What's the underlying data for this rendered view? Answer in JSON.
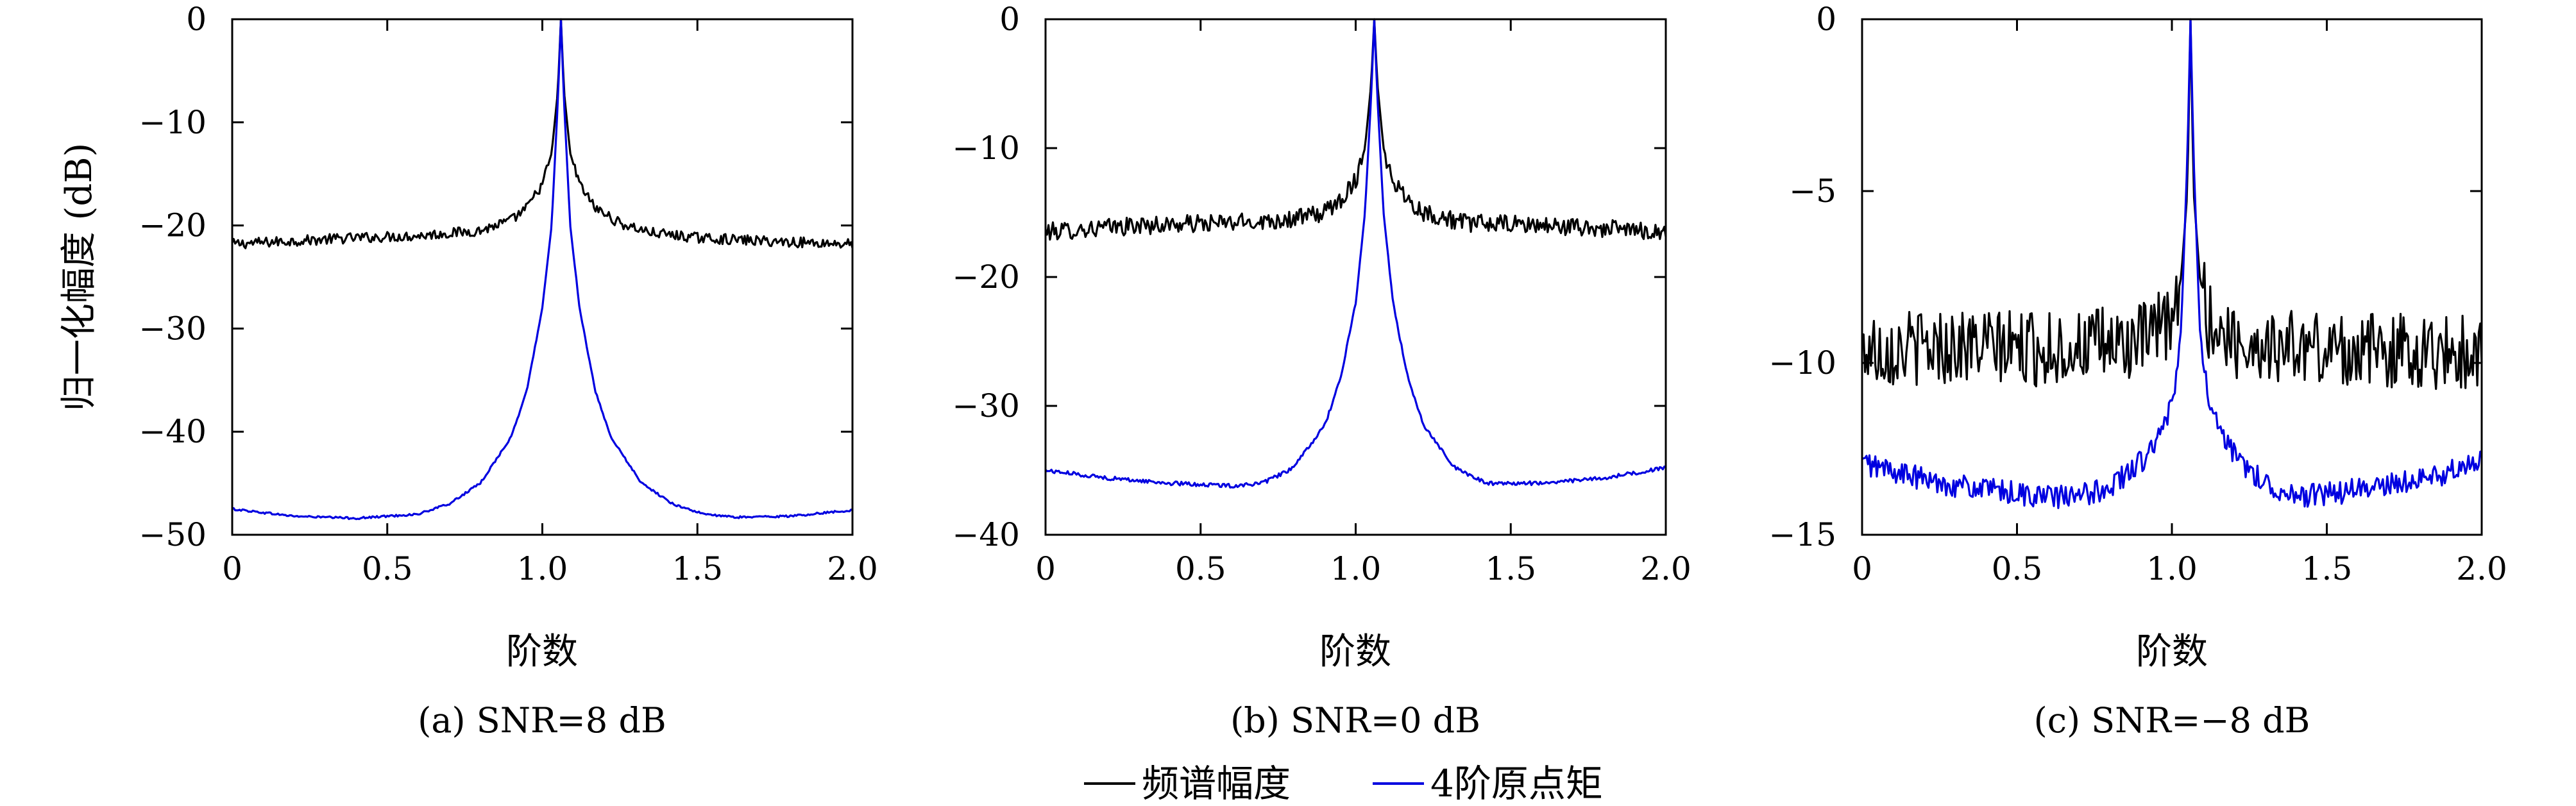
{
  "figure": {
    "legend": [
      {
        "label": "频谱幅度",
        "color": "#000000"
      },
      {
        "label": "4阶原点矩",
        "color": "#0000e0"
      }
    ]
  },
  "chart_data": [
    {
      "type": "line",
      "caption": "(a) SNR=8 dB",
      "xlabel": "阶数",
      "ylabel": "归一化幅度 (dB)",
      "xlim": [
        0,
        2.0
      ],
      "ylim": [
        -50,
        0
      ],
      "xticks": [
        0,
        0.5,
        1.0,
        1.5,
        2.0
      ],
      "xtick_labels": [
        "0",
        "0.5",
        "1.0",
        "1.5",
        "2.0"
      ],
      "yticks": [
        0,
        -10,
        -20,
        -30,
        -40,
        -50
      ],
      "ytick_labels": [
        "0",
        "−10",
        "−20",
        "−30",
        "−40",
        "−50"
      ],
      "grid": false,
      "series": [
        {
          "name": "频谱幅度",
          "color": "#000000",
          "noise": 0.5,
          "x": [
            0,
            0.2,
            0.4,
            0.6,
            0.8,
            0.9,
            0.95,
            1.0,
            1.03,
            1.05,
            1.06,
            1.07,
            1.09,
            1.12,
            1.17,
            1.25,
            1.35,
            1.5,
            1.7,
            1.9,
            2.0
          ],
          "y": [
            -21.8,
            -21.5,
            -21.2,
            -21.0,
            -20.5,
            -19.5,
            -18.3,
            -16.0,
            -13.0,
            -7.0,
            0,
            -7.0,
            -13.0,
            -16.0,
            -18.3,
            -19.8,
            -20.7,
            -21.2,
            -21.5,
            -21.7,
            -21.8
          ]
        },
        {
          "name": "4阶原点矩",
          "color": "#0000e0",
          "noise": 0.1,
          "x": [
            0,
            0.2,
            0.4,
            0.6,
            0.7,
            0.8,
            0.9,
            0.95,
            1.0,
            1.03,
            1.05,
            1.06,
            1.07,
            1.09,
            1.12,
            1.17,
            1.22,
            1.32,
            1.42,
            1.52,
            1.62,
            1.8,
            2.0
          ],
          "y": [
            -47.5,
            -48.2,
            -48.4,
            -48.0,
            -47.0,
            -45.0,
            -40.5,
            -36.0,
            -28.0,
            -20.0,
            -8.0,
            0,
            -8.0,
            -20.0,
            -28.0,
            -36.0,
            -40.5,
            -45.0,
            -47.0,
            -48.0,
            -48.3,
            -48.2,
            -47.6
          ]
        }
      ]
    },
    {
      "type": "line",
      "caption": "(b) SNR=0 dB",
      "xlabel": "阶数",
      "ylabel": "",
      "xlim": [
        0,
        2.0
      ],
      "ylim": [
        -40,
        0
      ],
      "xticks": [
        0,
        0.5,
        1.0,
        1.5,
        2.0
      ],
      "xtick_labels": [
        "0",
        "0.5",
        "1.0",
        "1.5",
        "2.0"
      ],
      "yticks": [
        0,
        -10,
        -20,
        -30,
        -40
      ],
      "ytick_labels": [
        "0",
        "−10",
        "−20",
        "−30",
        "−40"
      ],
      "grid": false,
      "series": [
        {
          "name": "频谱幅度",
          "color": "#000000",
          "noise": 0.7,
          "x": [
            0,
            0.3,
            0.6,
            0.8,
            0.9,
            0.95,
            1.0,
            1.03,
            1.05,
            1.06,
            1.07,
            1.09,
            1.12,
            1.17,
            1.22,
            1.35,
            1.6,
            2.0
          ],
          "y": [
            -16.5,
            -16.0,
            -15.8,
            -15.5,
            -15.0,
            -14.0,
            -12.5,
            -10.0,
            -5.0,
            0,
            -5.0,
            -10.0,
            -12.5,
            -14.0,
            -15.0,
            -15.8,
            -16.0,
            -16.5
          ]
        },
        {
          "name": "4阶原点矩",
          "color": "#0000e0",
          "noise": 0.15,
          "x": [
            0,
            0.2,
            0.4,
            0.6,
            0.7,
            0.8,
            0.9,
            0.95,
            1.0,
            1.03,
            1.05,
            1.06,
            1.07,
            1.09,
            1.12,
            1.17,
            1.22,
            1.32,
            1.42,
            1.6,
            1.8,
            2.0
          ],
          "y": [
            -35.0,
            -35.6,
            -36.0,
            -36.2,
            -36.0,
            -34.8,
            -31.5,
            -28.0,
            -22.0,
            -15.0,
            -6.0,
            0,
            -6.0,
            -15.0,
            -22.0,
            -28.0,
            -31.5,
            -34.8,
            -36.0,
            -36.0,
            -35.6,
            -34.8
          ]
        }
      ]
    },
    {
      "type": "line",
      "caption": "(c) SNR=−8 dB",
      "xlabel": "阶数",
      "ylabel": "",
      "xlim": [
        0,
        2.0
      ],
      "ylim": [
        -15,
        0
      ],
      "xticks": [
        0,
        0.5,
        1.0,
        1.5,
        2.0
      ],
      "xtick_labels": [
        "0",
        "0.5",
        "1.0",
        "1.5",
        "2.0"
      ],
      "yticks": [
        0,
        -5,
        -10,
        -15
      ],
      "ytick_labels": [
        "0",
        "−5",
        "−10",
        "−15"
      ],
      "grid": false,
      "series": [
        {
          "name": "频谱幅度",
          "color": "#000000",
          "noise": 1.1,
          "x": [
            0,
            0.3,
            0.6,
            0.9,
            1.0,
            1.03,
            1.05,
            1.06,
            1.07,
            1.09,
            1.12,
            1.2,
            1.5,
            2.0
          ],
          "y": [
            -9.6,
            -9.5,
            -9.6,
            -9.4,
            -8.8,
            -7.5,
            -5.0,
            0,
            -5.0,
            -7.5,
            -8.8,
            -9.4,
            -9.6,
            -9.7
          ]
        },
        {
          "name": "4阶原点矩",
          "color": "#0000e0",
          "noise": 0.35,
          "x": [
            0,
            0.2,
            0.4,
            0.6,
            0.7,
            0.8,
            0.9,
            0.95,
            1.0,
            1.03,
            1.05,
            1.06,
            1.07,
            1.09,
            1.12,
            1.17,
            1.22,
            1.32,
            1.42,
            1.6,
            1.8,
            2.0
          ],
          "y": [
            -12.9,
            -13.4,
            -13.7,
            -13.9,
            -13.9,
            -13.6,
            -12.9,
            -12.3,
            -11.3,
            -9.0,
            -4.0,
            0,
            -4.0,
            -9.0,
            -11.3,
            -12.3,
            -12.9,
            -13.6,
            -13.9,
            -13.7,
            -13.4,
            -12.9
          ]
        }
      ]
    }
  ]
}
